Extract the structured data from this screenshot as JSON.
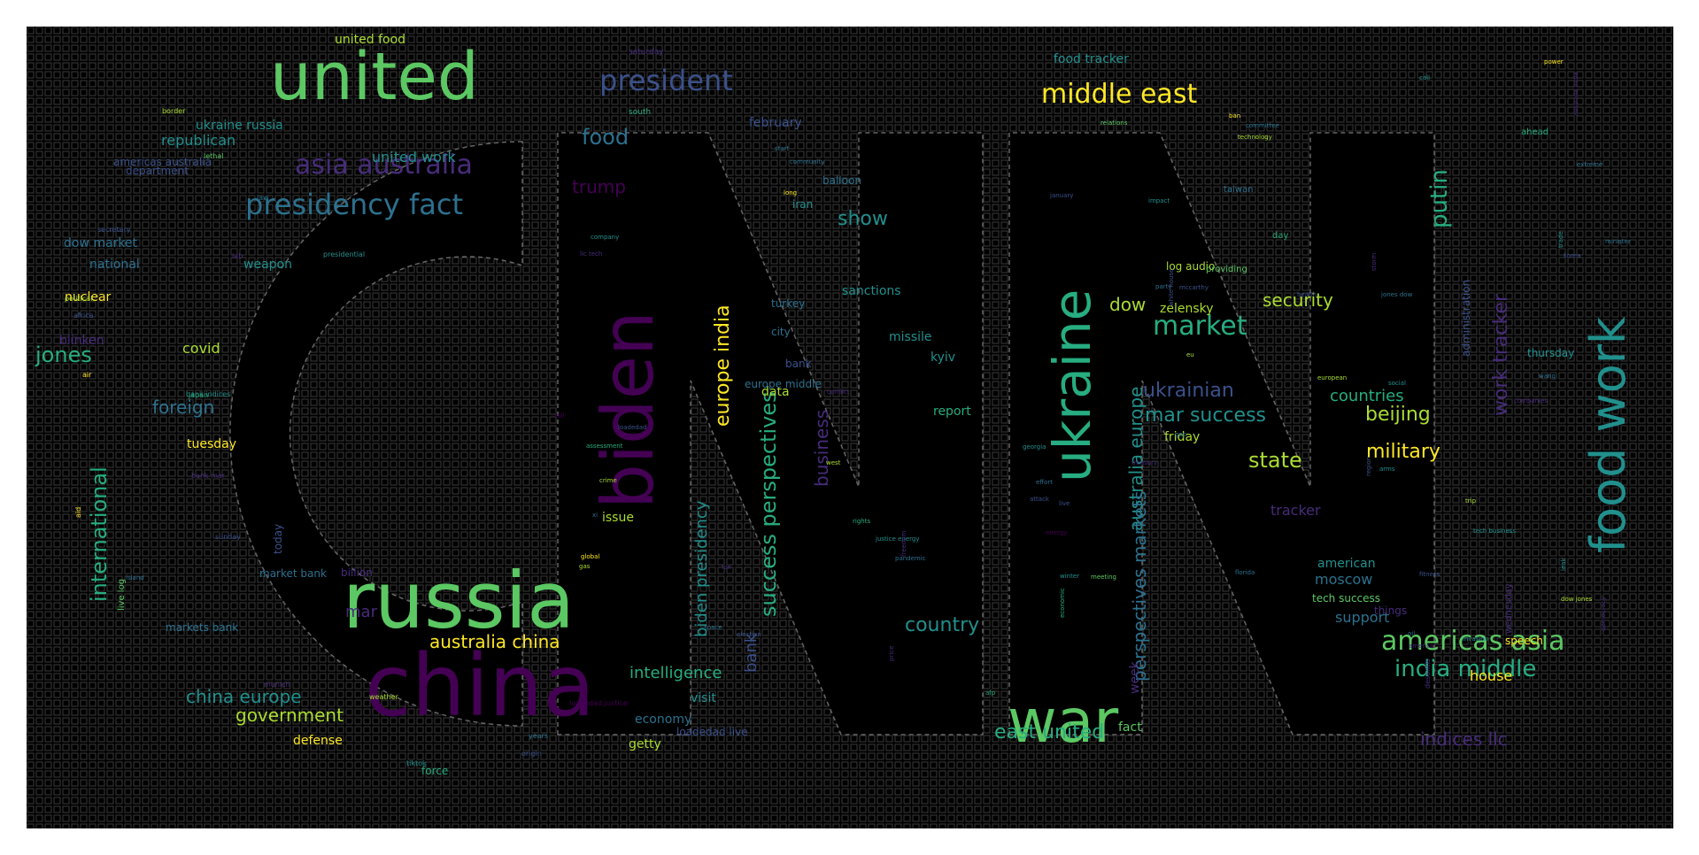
{
  "palette": [
    "#440154",
    "#472c7a",
    "#3b518b",
    "#2c718e",
    "#21908d",
    "#27ad81",
    "#5cc863",
    "#aadc32",
    "#fde725"
  ],
  "background": "#000000",
  "words": [
    {
      "text": "united",
      "size": 5,
      "color": 6,
      "orient": "h"
    },
    {
      "text": "russia",
      "size": 5,
      "color": 6,
      "orient": "h"
    },
    {
      "text": "china",
      "size": 5,
      "color": 0,
      "orient": "h"
    },
    {
      "text": "ukraine",
      "size": 5,
      "color": 5,
      "orient": "v"
    },
    {
      "text": "biden",
      "size": 5,
      "color": 0,
      "orient": "v"
    },
    {
      "text": "war",
      "size": 5,
      "color": 6,
      "orient": "h"
    },
    {
      "text": "food work",
      "size": 4,
      "color": 4,
      "orient": "v"
    },
    {
      "text": "president",
      "size": 3,
      "color": 2,
      "orient": "h"
    },
    {
      "text": "presidency fact",
      "size": 3,
      "color": 3,
      "orient": "h"
    },
    {
      "text": "asia australia",
      "size": 3,
      "color": 1,
      "orient": "h"
    },
    {
      "text": "middle east",
      "size": 3,
      "color": 8,
      "orient": "h"
    },
    {
      "text": "americas asia",
      "size": 3,
      "color": 6,
      "orient": "h"
    },
    {
      "text": "success perspectives",
      "size": 3,
      "color": 5,
      "orient": "v"
    },
    {
      "text": "market",
      "size": 3,
      "color": 5,
      "orient": "h"
    },
    {
      "text": "europe india",
      "size": 3,
      "color": 8,
      "orient": "v"
    },
    {
      "text": "international",
      "size": 3,
      "color": 5,
      "orient": "v"
    },
    {
      "text": "work tracker",
      "size": 3,
      "color": 1,
      "orient": "v"
    },
    {
      "text": "india middle",
      "size": 3,
      "color": 5,
      "orient": "h"
    },
    {
      "text": "food",
      "size": 2,
      "color": 3,
      "orient": "h"
    },
    {
      "text": "trump",
      "size": 2,
      "color": 0,
      "orient": "h"
    },
    {
      "text": "australia china",
      "size": 2,
      "color": 8,
      "orient": "h"
    },
    {
      "text": "china europe",
      "size": 2,
      "color": 4,
      "orient": "h"
    },
    {
      "text": "government",
      "size": 2,
      "color": 7,
      "orient": "h"
    },
    {
      "text": "jones",
      "size": 2,
      "color": 5,
      "orient": "h"
    },
    {
      "text": "foreign",
      "size": 2,
      "color": 3,
      "orient": "h"
    },
    {
      "text": "show",
      "size": 2,
      "color": 4,
      "orient": "h"
    },
    {
      "text": "ukrainian",
      "size": 2,
      "color": 2,
      "orient": "h"
    },
    {
      "text": "mar success",
      "size": 2,
      "color": 4,
      "orient": "h"
    },
    {
      "text": "state",
      "size": 2,
      "color": 7,
      "orient": "h"
    },
    {
      "text": "military",
      "size": 2,
      "color": 8,
      "orient": "h"
    },
    {
      "text": "beijing",
      "size": 2,
      "color": 7,
      "orient": "h"
    },
    {
      "text": "security",
      "size": 2,
      "color": 7,
      "orient": "h"
    },
    {
      "text": "countries",
      "size": 2,
      "color": 5,
      "orient": "h"
    },
    {
      "text": "putin",
      "size": 2,
      "color": 5,
      "orient": "v"
    },
    {
      "text": "australia europe",
      "size": 2,
      "color": 4,
      "orient": "v"
    },
    {
      "text": "perspectives markets",
      "size": 2,
      "color": 3,
      "orient": "v"
    },
    {
      "text": "business",
      "size": 2,
      "color": 1,
      "orient": "v"
    },
    {
      "text": "biden presidency",
      "size": 2,
      "color": 4,
      "orient": "v"
    },
    {
      "text": "bank",
      "size": 2,
      "color": 2,
      "orient": "v"
    },
    {
      "text": "country",
      "size": 2,
      "color": 4,
      "orient": "h"
    },
    {
      "text": "intelligence",
      "size": 2,
      "color": 5,
      "orient": "h"
    },
    {
      "text": "east united",
      "size": 2,
      "color": 5,
      "orient": "h"
    },
    {
      "text": "indices llc",
      "size": 2,
      "color": 1,
      "orient": "h"
    },
    {
      "text": "dow",
      "size": 2,
      "color": 7,
      "orient": "h"
    },
    {
      "text": "republican",
      "size": 1,
      "color": 4,
      "orient": "h"
    },
    {
      "text": "united work",
      "size": 1,
      "color": 4,
      "orient": "h"
    },
    {
      "text": "ukraine russia",
      "size": 1,
      "color": 4,
      "orient": "h"
    },
    {
      "text": "united food",
      "size": 1,
      "color": 7,
      "orient": "h"
    },
    {
      "text": "food tracker",
      "size": 1,
      "color": 4,
      "orient": "h"
    },
    {
      "text": "february",
      "size": 1,
      "color": 2,
      "orient": "h"
    },
    {
      "text": "zelensky",
      "size": 1,
      "color": 7,
      "orient": "h"
    },
    {
      "text": "covid",
      "size": 1,
      "color": 7,
      "orient": "h"
    },
    {
      "text": "nuclear",
      "size": 1,
      "color": 8,
      "orient": "h"
    },
    {
      "text": "tuesday",
      "size": 1,
      "color": 8,
      "orient": "h"
    },
    {
      "text": "sanctions",
      "size": 1,
      "color": 4,
      "orient": "h"
    },
    {
      "text": "data",
      "size": 1,
      "color": 7,
      "orient": "h"
    },
    {
      "text": "issue",
      "size": 1,
      "color": 7,
      "orient": "h"
    },
    {
      "text": "defense",
      "size": 1,
      "color": 8,
      "orient": "h"
    },
    {
      "text": "getty",
      "size": 1,
      "color": 7,
      "orient": "h"
    },
    {
      "text": "economy",
      "size": 1,
      "color": 3,
      "orient": "h"
    },
    {
      "text": "visit",
      "size": 1,
      "color": 4,
      "orient": "h"
    },
    {
      "text": "support",
      "size": 1,
      "color": 3,
      "orient": "h"
    },
    {
      "text": "moscow",
      "size": 1,
      "color": 3,
      "orient": "h"
    },
    {
      "text": "tracker",
      "size": 1,
      "color": 1,
      "orient": "h"
    },
    {
      "text": "house",
      "size": 1,
      "color": 8,
      "orient": "h"
    },
    {
      "text": "mar",
      "size": 1,
      "color": 1,
      "orient": "h"
    },
    {
      "text": "dow market",
      "size": 1,
      "color": 3,
      "orient": "h"
    },
    {
      "text": "national",
      "size": 1,
      "color": 3,
      "orient": "h"
    },
    {
      "text": "weapon",
      "size": 1,
      "color": 4,
      "orient": "h"
    },
    {
      "text": "blinken",
      "size": 1,
      "color": 1,
      "orient": "h"
    },
    {
      "text": "kyiv",
      "size": 1,
      "color": 4,
      "orient": "h"
    },
    {
      "text": "report",
      "size": 1,
      "color": 5,
      "orient": "h"
    },
    {
      "text": "friday",
      "size": 1,
      "color": 7,
      "orient": "h"
    },
    {
      "text": "fact",
      "size": 1,
      "color": 6,
      "orient": "h"
    },
    {
      "text": "american",
      "size": 1,
      "color": 4,
      "orient": "h"
    },
    {
      "text": "tech success",
      "size": 1,
      "color": 6,
      "orient": "h"
    },
    {
      "text": "thursday",
      "size": 1,
      "color": 4,
      "orient": "h"
    },
    {
      "text": "administration",
      "size": 1,
      "color": 2,
      "orient": "v"
    },
    {
      "text": "week",
      "size": 1,
      "color": 1,
      "orient": "v"
    },
    {
      "text": "missile",
      "size": 1,
      "color": 4,
      "orient": "h"
    },
    {
      "text": "billion",
      "size": 1,
      "color": 1,
      "orient": "h"
    },
    {
      "text": "loadedad live",
      "size": 1,
      "color": 2,
      "orient": "h"
    },
    {
      "text": "force",
      "size": 1,
      "color": 5,
      "orient": "h"
    },
    {
      "text": "markets bank",
      "size": 1,
      "color": 3,
      "orient": "h"
    },
    {
      "text": "department",
      "size": 1,
      "color": 2,
      "orient": "h"
    },
    {
      "text": "americas australia",
      "size": 0,
      "color": 2,
      "orient": "h"
    },
    {
      "text": "south",
      "size": 1,
      "color": 5,
      "orient": "h"
    },
    {
      "text": "balloon",
      "size": 1,
      "color": 3,
      "orient": "h"
    },
    {
      "text": "iran",
      "size": 1,
      "color": 4,
      "orient": "h"
    },
    {
      "text": "turkey",
      "size": 1,
      "color": 3,
      "orient": "h"
    },
    {
      "text": "city",
      "size": 1,
      "color": 3,
      "orient": "h"
    },
    {
      "text": "bank",
      "size": 1,
      "color": 2,
      "orient": "h"
    },
    {
      "text": "europe middle",
      "size": 1,
      "color": 3,
      "orient": "h"
    },
    {
      "text": "market bank",
      "size": 1,
      "color": 3,
      "orient": "h"
    },
    {
      "text": "today",
      "size": 1,
      "color": 2,
      "orient": "v"
    },
    {
      "text": "live log",
      "size": 1,
      "color": 6,
      "orient": "v"
    },
    {
      "text": "log audio",
      "size": 1,
      "color": 7,
      "orient": "h"
    },
    {
      "text": "providing",
      "size": 1,
      "color": 6,
      "orient": "h"
    },
    {
      "text": "taiwan",
      "size": 1,
      "color": 3,
      "orient": "h"
    },
    {
      "text": "day",
      "size": 1,
      "color": 5,
      "orient": "h"
    },
    {
      "text": "things",
      "size": 1,
      "color": 1,
      "orient": "h"
    },
    {
      "text": "speech",
      "size": 1,
      "color": 8,
      "orient": "h"
    },
    {
      "text": "wednesday",
      "size": 1,
      "color": 1,
      "orient": "v"
    },
    {
      "text": "ahead",
      "size": 0,
      "color": 5,
      "orient": "h"
    },
    {
      "text": "saturday",
      "size": 0,
      "color": 1,
      "orient": "h"
    },
    {
      "text": "border",
      "size": 0,
      "color": 7,
      "orient": "h"
    },
    {
      "text": "lethal",
      "size": 0,
      "color": 6,
      "orient": "h"
    },
    {
      "text": "law",
      "size": 0,
      "color": 3,
      "orient": "h"
    },
    {
      "text": "secretary",
      "size": 0,
      "color": 2,
      "orient": "h"
    },
    {
      "text": "lab",
      "size": 0,
      "color": 1,
      "orient": "h"
    },
    {
      "text": "presidential",
      "size": 0,
      "color": 4,
      "orient": "h"
    },
    {
      "text": "political",
      "size": 0,
      "color": 7,
      "orient": "h"
    },
    {
      "text": "africa",
      "size": 0,
      "color": 2,
      "orient": "h"
    },
    {
      "text": "air",
      "size": 0,
      "color": 8,
      "orient": "h"
    },
    {
      "text": "bank indices",
      "size": 0,
      "color": 4,
      "orient": "h"
    },
    {
      "text": "japan",
      "size": 0,
      "color": 5,
      "orient": "h"
    },
    {
      "text": "bank mar",
      "size": 0,
      "color": 1,
      "orient": "h"
    },
    {
      "text": "sunday",
      "size": 0,
      "color": 2,
      "orient": "h"
    },
    {
      "text": "munich",
      "size": 0,
      "color": 1,
      "orient": "h"
    },
    {
      "text": "weather",
      "size": 0,
      "color": 7,
      "orient": "h"
    },
    {
      "text": "tiktok",
      "size": 0,
      "color": 4,
      "orient": "h"
    },
    {
      "text": "years",
      "size": 0,
      "color": 3,
      "orient": "h"
    },
    {
      "text": "origin",
      "size": 0,
      "color": 2,
      "orient": "h"
    },
    {
      "text": "loadedad justice",
      "size": 0,
      "color": 0,
      "orient": "h"
    },
    {
      "text": "company",
      "size": 0,
      "color": 4,
      "orient": "h"
    },
    {
      "text": "llc tech",
      "size": 0,
      "color": 1,
      "orient": "h"
    },
    {
      "text": "bill",
      "size": 0,
      "color": 0,
      "orient": "h"
    },
    {
      "text": "loadedad",
      "size": 0,
      "color": 2,
      "orient": "h"
    },
    {
      "text": "assessment",
      "size": 0,
      "color": 5,
      "orient": "h"
    },
    {
      "text": "crime",
      "size": 0,
      "color": 7,
      "orient": "h"
    },
    {
      "text": "xi",
      "size": 0,
      "color": 3,
      "orient": "h"
    },
    {
      "text": "global",
      "size": 0,
      "color": 8,
      "orient": "h"
    },
    {
      "text": "gas",
      "size": 0,
      "color": 7,
      "orient": "h"
    },
    {
      "text": "fox",
      "size": 0,
      "color": 1,
      "orient": "h"
    },
    {
      "text": "space",
      "size": 0,
      "color": 3,
      "orient": "h"
    },
    {
      "text": "election",
      "size": 0,
      "color": 2,
      "orient": "h"
    },
    {
      "text": "start",
      "size": 0,
      "color": 3,
      "orient": "h"
    },
    {
      "text": "community",
      "size": 0,
      "color": 3,
      "orient": "h"
    },
    {
      "text": "long",
      "size": 0,
      "color": 8,
      "orient": "h"
    },
    {
      "text": "conflict",
      "size": 0,
      "color": 1,
      "orient": "h"
    },
    {
      "text": "west",
      "size": 0,
      "color": 7,
      "orient": "h"
    },
    {
      "text": "rights",
      "size": 0,
      "color": 5,
      "orient": "h"
    },
    {
      "text": "justice energy",
      "size": 0,
      "color": 4,
      "orient": "h"
    },
    {
      "text": "pandemic",
      "size": 0,
      "color": 3,
      "orient": "h"
    },
    {
      "text": "freedom",
      "size": 0,
      "color": 1,
      "orient": "v"
    },
    {
      "text": "price",
      "size": 0,
      "color": 1,
      "orient": "v"
    },
    {
      "text": "afp",
      "size": 0,
      "color": 5,
      "orient": "h"
    },
    {
      "text": "georgia",
      "size": 0,
      "color": 4,
      "orient": "h"
    },
    {
      "text": "january",
      "size": 0,
      "color": 2,
      "orient": "h"
    },
    {
      "text": "effort",
      "size": 0,
      "color": 3,
      "orient": "h"
    },
    {
      "text": "attack",
      "size": 0,
      "color": 2,
      "orient": "h"
    },
    {
      "text": "live",
      "size": 0,
      "color": 2,
      "orient": "h"
    },
    {
      "text": "energy",
      "size": 0,
      "color": 0,
      "orient": "h"
    },
    {
      "text": "winter",
      "size": 0,
      "color": 4,
      "orient": "h"
    },
    {
      "text": "economic",
      "size": 0,
      "color": 5,
      "orient": "v"
    },
    {
      "text": "meeting",
      "size": 0,
      "color": 6,
      "orient": "h"
    },
    {
      "text": "impact",
      "size": 0,
      "color": 4,
      "orient": "h"
    },
    {
      "text": "party",
      "size": 0,
      "color": 3,
      "orient": "h"
    },
    {
      "text": "mccarthy",
      "size": 0,
      "color": 2,
      "orient": "h"
    },
    {
      "text": "white house",
      "size": 0,
      "color": 2,
      "orient": "v"
    },
    {
      "text": "eu",
      "size": 0,
      "color": 7,
      "orient": "h"
    },
    {
      "text": "gop",
      "size": 0,
      "color": 3,
      "orient": "h"
    },
    {
      "text": "treasury",
      "size": 0,
      "color": 1,
      "orient": "h"
    },
    {
      "text": "florida",
      "size": 0,
      "color": 3,
      "orient": "h"
    },
    {
      "text": "relations",
      "size": 0,
      "color": 6,
      "orient": "h"
    },
    {
      "text": "ban",
      "size": 0,
      "color": 8,
      "orient": "h"
    },
    {
      "text": "committee",
      "size": 0,
      "color": 3,
      "orient": "h"
    },
    {
      "text": "technology",
      "size": 0,
      "color": 7,
      "orient": "h"
    },
    {
      "text": "call",
      "size": 0,
      "color": 4,
      "orient": "h"
    },
    {
      "text": "power",
      "size": 0,
      "color": 8,
      "orient": "h"
    },
    {
      "text": "australia india",
      "size": 0,
      "color": 1,
      "orient": "v"
    },
    {
      "text": "extreme",
      "size": 0,
      "color": 3,
      "orient": "h"
    },
    {
      "text": "trade",
      "size": 0,
      "color": 4,
      "orient": "v"
    },
    {
      "text": "korea",
      "size": 0,
      "color": 2,
      "orient": "h"
    },
    {
      "text": "minister",
      "size": 0,
      "color": 3,
      "orient": "h"
    },
    {
      "text": "storm",
      "size": 0,
      "color": 1,
      "orient": "v"
    },
    {
      "text": "health",
      "size": 0,
      "color": 2,
      "orient": "h"
    },
    {
      "text": "jones dow",
      "size": 0,
      "color": 3,
      "orient": "h"
    },
    {
      "text": "european",
      "size": 0,
      "color": 7,
      "orient": "h"
    },
    {
      "text": "social",
      "size": 0,
      "color": 4,
      "orient": "h"
    },
    {
      "text": "wang",
      "size": 0,
      "color": 3,
      "orient": "h"
    },
    {
      "text": "companies",
      "size": 0,
      "color": 1,
      "orient": "h"
    },
    {
      "text": "arms",
      "size": 0,
      "color": 4,
      "orient": "h"
    },
    {
      "text": "region",
      "size": 0,
      "color": 2,
      "orient": "v"
    },
    {
      "text": "trip",
      "size": 0,
      "color": 7,
      "orient": "h"
    },
    {
      "text": "tech business",
      "size": 0,
      "color": 4,
      "orient": "h"
    },
    {
      "text": "fitness",
      "size": 0,
      "color": 2,
      "orient": "h"
    },
    {
      "text": "oil",
      "size": 0,
      "color": 3,
      "orient": "h"
    },
    {
      "text": "america",
      "size": 0,
      "color": 1,
      "orient": "h"
    },
    {
      "text": "invasion",
      "size": 0,
      "color": 4,
      "orient": "h"
    },
    {
      "text": "leak",
      "size": 0,
      "color": 4,
      "orient": "v"
    },
    {
      "text": "dow jones",
      "size": 0,
      "color": 7,
      "orient": "h"
    },
    {
      "text": "democracy",
      "size": 0,
      "color": 1,
      "orient": "v"
    },
    {
      "text": "desantis",
      "size": 0,
      "color": 1,
      "orient": "v"
    },
    {
      "text": "island",
      "size": 0,
      "color": 3,
      "orient": "h"
    },
    {
      "text": "aid",
      "size": 0,
      "color": 8,
      "orient": "v"
    }
  ]
}
